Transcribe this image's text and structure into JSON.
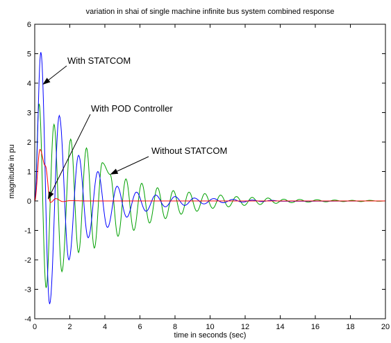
{
  "chart_data": {
    "type": "line",
    "title": "variation in shai of single machine infinite bus system combined response",
    "xlabel": "time in seconds (sec)",
    "ylabel": "magnitude in pu",
    "xlim": [
      0,
      20
    ],
    "ylim": [
      -4,
      6
    ],
    "xticks": [
      "0",
      "2",
      "4",
      "6",
      "8",
      "10",
      "12",
      "14",
      "16",
      "18",
      "20"
    ],
    "yticks": [
      "-4",
      "-3",
      "-2",
      "-1",
      "0",
      "1",
      "2",
      "3",
      "4",
      "5",
      "6"
    ],
    "grid": false,
    "series": [
      {
        "color": "#00a000",
        "peaks": [
          [
            0.25,
            3.3
          ],
          [
            0.65,
            -2.95
          ],
          [
            1.1,
            2.6
          ],
          [
            1.55,
            -2.4
          ],
          [
            2.05,
            2.1
          ],
          [
            2.5,
            -1.75
          ],
          [
            2.95,
            1.8
          ],
          [
            3.4,
            -1.6
          ],
          [
            3.85,
            1.3
          ],
          [
            4.3,
            0.9
          ],
          [
            4.75,
            -1.2
          ],
          [
            5.2,
            0.75
          ],
          [
            5.65,
            -1.0
          ],
          [
            6.1,
            0.6
          ],
          [
            6.55,
            -0.75
          ],
          [
            7.0,
            0.45
          ],
          [
            7.45,
            -0.6
          ],
          [
            7.9,
            0.35
          ],
          [
            8.35,
            -0.45
          ],
          [
            8.8,
            0.3
          ],
          [
            9.25,
            -0.35
          ],
          [
            9.7,
            0.25
          ],
          [
            10.15,
            -0.25
          ],
          [
            10.6,
            0.2
          ],
          [
            11.05,
            -0.2
          ],
          [
            11.5,
            0.15
          ],
          [
            11.95,
            -0.15
          ],
          [
            12.4,
            0.12
          ],
          [
            12.85,
            -0.12
          ],
          [
            13.3,
            0.1
          ],
          [
            13.75,
            -0.08
          ],
          [
            14.2,
            0.06
          ],
          [
            14.65,
            -0.06
          ],
          [
            15.1,
            0.05
          ],
          [
            15.6,
            -0.04
          ],
          [
            16.1,
            0.04
          ],
          [
            16.6,
            -0.03
          ],
          [
            17.1,
            0.03
          ],
          [
            17.6,
            -0.02
          ],
          [
            18.1,
            0.02
          ],
          [
            18.6,
            -0.02
          ],
          [
            19.1,
            0.02
          ],
          [
            19.6,
            -0.01
          ]
        ]
      },
      {
        "color": "#0000ff",
        "peaks": [
          [
            0.35,
            5.05
          ],
          [
            0.85,
            -3.5
          ],
          [
            1.4,
            2.9
          ],
          [
            1.95,
            -2.0
          ],
          [
            2.5,
            1.55
          ],
          [
            3.05,
            -1.25
          ],
          [
            3.6,
            1.0
          ],
          [
            4.15,
            -0.9
          ],
          [
            4.7,
            0.5
          ],
          [
            5.25,
            -0.55
          ],
          [
            5.8,
            0.3
          ],
          [
            6.35,
            -0.35
          ],
          [
            6.9,
            0.2
          ],
          [
            7.45,
            -0.2
          ],
          [
            8.0,
            0.15
          ],
          [
            8.55,
            -0.15
          ],
          [
            9.1,
            0.1
          ],
          [
            9.65,
            -0.1
          ],
          [
            10.2,
            0.08
          ],
          [
            10.75,
            -0.06
          ],
          [
            11.3,
            0.05
          ],
          [
            11.85,
            -0.04
          ],
          [
            12.4,
            0.03
          ],
          [
            12.95,
            -0.02
          ],
          [
            13.5,
            0.02
          ],
          [
            14.05,
            -0.01
          ]
        ]
      },
      {
        "color": "#ff0000",
        "peaks": [
          [
            0.3,
            1.75
          ],
          [
            0.6,
            1.2
          ],
          [
            0.9,
            -0.05
          ],
          [
            1.2,
            0.08
          ],
          [
            1.6,
            -0.02
          ],
          [
            2.0,
            0.01
          ],
          [
            3.0,
            0.0
          ]
        ]
      }
    ],
    "annotations": [
      {
        "text": "With STATCOM",
        "target": [
          0.45,
          3.95
        ]
      },
      {
        "text": "With POD Controller",
        "target": [
          0.75,
          0.05
        ]
      },
      {
        "text": "Without STATCOM",
        "target": [
          4.3,
          0.9
        ]
      }
    ]
  }
}
